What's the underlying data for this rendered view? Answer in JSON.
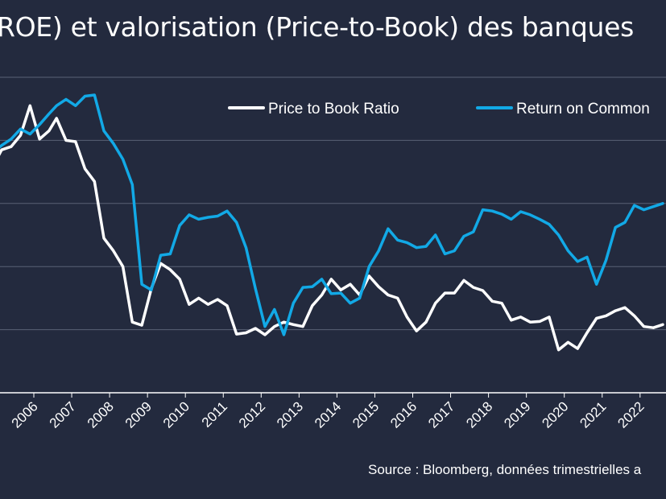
{
  "title": "ROE) et valorisation (Price-to-Book) des banques",
  "source": "Source : Bloomberg, données trimestrielles a",
  "colors": {
    "background": "#232a3e",
    "grid": "#5a6175",
    "price_to_book": "#ffffff",
    "roe": "#12a9e6"
  },
  "chart_data": {
    "type": "line",
    "title": "",
    "xlabel": "",
    "ylabel": "",
    "x_range": [
      2005.0,
      2022.6
    ],
    "y_range": [
      0,
      5
    ],
    "y_ticks_labeled": false,
    "grid": "horizontal",
    "legend_position": "top",
    "x_ticks": [
      "2006",
      "2007",
      "2008",
      "2009",
      "2010",
      "2011",
      "2012",
      "2013",
      "2014",
      "2015",
      "2016",
      "2017",
      "2018",
      "2019",
      "2020",
      "2021",
      "2022",
      "20"
    ],
    "series": [
      {
        "name": "Price to Book Ratio",
        "color": "#ffffff",
        "points": [
          [
            2004.95,
            3.62
          ],
          [
            2005.15,
            3.85
          ],
          [
            2005.4,
            3.9
          ],
          [
            2005.65,
            4.08
          ],
          [
            2005.9,
            4.55
          ],
          [
            2006.15,
            4.02
          ],
          [
            2006.4,
            4.15
          ],
          [
            2006.6,
            4.35
          ],
          [
            2006.85,
            4.0
          ],
          [
            2007.1,
            3.98
          ],
          [
            2007.35,
            3.55
          ],
          [
            2007.6,
            3.35
          ],
          [
            2007.85,
            2.45
          ],
          [
            2008.1,
            2.25
          ],
          [
            2008.35,
            2.0
          ],
          [
            2008.6,
            1.12
          ],
          [
            2008.85,
            1.07
          ],
          [
            2009.1,
            1.65
          ],
          [
            2009.35,
            2.05
          ],
          [
            2009.6,
            1.95
          ],
          [
            2009.85,
            1.8
          ],
          [
            2010.1,
            1.4
          ],
          [
            2010.35,
            1.5
          ],
          [
            2010.6,
            1.4
          ],
          [
            2010.85,
            1.48
          ],
          [
            2011.1,
            1.38
          ],
          [
            2011.35,
            0.93
          ],
          [
            2011.6,
            0.95
          ],
          [
            2011.85,
            1.02
          ],
          [
            2012.1,
            0.92
          ],
          [
            2012.35,
            1.05
          ],
          [
            2012.6,
            1.12
          ],
          [
            2012.85,
            1.08
          ],
          [
            2013.1,
            1.05
          ],
          [
            2013.35,
            1.38
          ],
          [
            2013.6,
            1.55
          ],
          [
            2013.85,
            1.8
          ],
          [
            2014.1,
            1.63
          ],
          [
            2014.35,
            1.72
          ],
          [
            2014.6,
            1.55
          ],
          [
            2014.85,
            1.85
          ],
          [
            2015.1,
            1.68
          ],
          [
            2015.35,
            1.55
          ],
          [
            2015.6,
            1.5
          ],
          [
            2015.85,
            1.2
          ],
          [
            2016.1,
            0.98
          ],
          [
            2016.35,
            1.12
          ],
          [
            2016.6,
            1.42
          ],
          [
            2016.85,
            1.58
          ],
          [
            2017.1,
            1.58
          ],
          [
            2017.35,
            1.78
          ],
          [
            2017.6,
            1.67
          ],
          [
            2017.85,
            1.62
          ],
          [
            2018.1,
            1.45
          ],
          [
            2018.35,
            1.42
          ],
          [
            2018.6,
            1.15
          ],
          [
            2018.85,
            1.2
          ],
          [
            2019.1,
            1.12
          ],
          [
            2019.35,
            1.13
          ],
          [
            2019.6,
            1.2
          ],
          [
            2019.85,
            0.68
          ],
          [
            2020.1,
            0.8
          ],
          [
            2020.35,
            0.7
          ],
          [
            2020.6,
            0.95
          ],
          [
            2020.85,
            1.18
          ],
          [
            2021.1,
            1.22
          ],
          [
            2021.35,
            1.3
          ],
          [
            2021.6,
            1.35
          ],
          [
            2021.85,
            1.22
          ],
          [
            2022.1,
            1.05
          ],
          [
            2022.35,
            1.03
          ],
          [
            2022.6,
            1.08
          ]
        ]
      },
      {
        "name": "Return on Common",
        "color": "#12a9e6",
        "points": [
          [
            2004.95,
            3.82
          ],
          [
            2005.15,
            3.92
          ],
          [
            2005.4,
            4.02
          ],
          [
            2005.65,
            4.18
          ],
          [
            2005.9,
            4.1
          ],
          [
            2006.15,
            4.25
          ],
          [
            2006.4,
            4.42
          ],
          [
            2006.6,
            4.55
          ],
          [
            2006.85,
            4.65
          ],
          [
            2007.1,
            4.55
          ],
          [
            2007.35,
            4.7
          ],
          [
            2007.6,
            4.72
          ],
          [
            2007.85,
            4.15
          ],
          [
            2008.1,
            3.95
          ],
          [
            2008.35,
            3.7
          ],
          [
            2008.6,
            3.3
          ],
          [
            2008.85,
            1.72
          ],
          [
            2009.1,
            1.63
          ],
          [
            2009.35,
            2.18
          ],
          [
            2009.6,
            2.2
          ],
          [
            2009.85,
            2.65
          ],
          [
            2010.1,
            2.82
          ],
          [
            2010.35,
            2.75
          ],
          [
            2010.6,
            2.78
          ],
          [
            2010.85,
            2.8
          ],
          [
            2011.1,
            2.88
          ],
          [
            2011.35,
            2.7
          ],
          [
            2011.6,
            2.3
          ],
          [
            2011.85,
            1.65
          ],
          [
            2012.1,
            1.05
          ],
          [
            2012.35,
            1.32
          ],
          [
            2012.6,
            0.92
          ],
          [
            2012.85,
            1.42
          ],
          [
            2013.1,
            1.67
          ],
          [
            2013.35,
            1.68
          ],
          [
            2013.6,
            1.8
          ],
          [
            2013.85,
            1.57
          ],
          [
            2014.1,
            1.58
          ],
          [
            2014.35,
            1.42
          ],
          [
            2014.6,
            1.5
          ],
          [
            2014.85,
            2.0
          ],
          [
            2015.1,
            2.25
          ],
          [
            2015.35,
            2.6
          ],
          [
            2015.6,
            2.42
          ],
          [
            2015.85,
            2.38
          ],
          [
            2016.1,
            2.3
          ],
          [
            2016.35,
            2.32
          ],
          [
            2016.6,
            2.5
          ],
          [
            2016.85,
            2.2
          ],
          [
            2017.1,
            2.25
          ],
          [
            2017.35,
            2.48
          ],
          [
            2017.6,
            2.55
          ],
          [
            2017.85,
            2.9
          ],
          [
            2018.1,
            2.88
          ],
          [
            2018.35,
            2.83
          ],
          [
            2018.6,
            2.75
          ],
          [
            2018.85,
            2.87
          ],
          [
            2019.1,
            2.82
          ],
          [
            2019.35,
            2.75
          ],
          [
            2019.6,
            2.67
          ],
          [
            2019.85,
            2.5
          ],
          [
            2020.1,
            2.25
          ],
          [
            2020.35,
            2.08
          ],
          [
            2020.6,
            2.15
          ],
          [
            2020.85,
            1.72
          ],
          [
            2021.1,
            2.1
          ],
          [
            2021.35,
            2.62
          ],
          [
            2021.6,
            2.7
          ],
          [
            2021.85,
            2.97
          ],
          [
            2022.1,
            2.9
          ],
          [
            2022.35,
            2.95
          ],
          [
            2022.6,
            3.0
          ]
        ]
      }
    ]
  }
}
